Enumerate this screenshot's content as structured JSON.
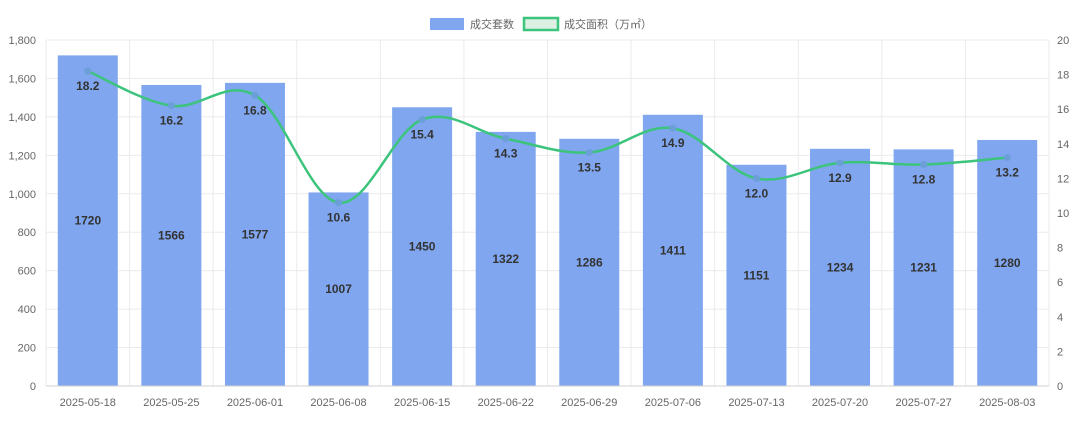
{
  "chart_data": {
    "type": "bar",
    "categories": [
      "2025-05-18",
      "2025-05-25",
      "2025-06-01",
      "2025-06-08",
      "2025-06-15",
      "2025-06-22",
      "2025-06-29",
      "2025-07-06",
      "2025-07-13",
      "2025-07-20",
      "2025-07-27",
      "2025-08-03"
    ],
    "series": [
      {
        "name": "成交套数",
        "type": "bar",
        "axis": "left",
        "color": "#7FA6EE",
        "values": [
          1720,
          1566,
          1577,
          1007,
          1450,
          1322,
          1286,
          1411,
          1151,
          1234,
          1231,
          1280
        ],
        "labels": [
          "1720",
          "1566",
          "1577",
          "1007",
          "1450",
          "1322",
          "1286",
          "1411",
          "1151",
          "1234",
          "1231",
          "1280"
        ]
      },
      {
        "name": "成交面积（万㎡）",
        "type": "line",
        "axis": "right",
        "color": "#3CC47C",
        "point_color": "#6A9FD8",
        "values": [
          18.2,
          16.2,
          16.8,
          10.6,
          15.4,
          14.3,
          13.5,
          14.9,
          12.0,
          12.9,
          12.8,
          13.2
        ],
        "labels": [
          "18.2",
          "16.2",
          "16.8",
          "10.6",
          "15.4",
          "14.3",
          "13.5",
          "14.9",
          "12.0",
          "12.9",
          "12.8",
          "13.2"
        ]
      }
    ],
    "y_left": {
      "min": 0,
      "max": 1800,
      "ticks": [
        0,
        200,
        400,
        600,
        800,
        1000,
        1200,
        1400,
        1600,
        1800
      ],
      "tick_labels": [
        "0",
        "200",
        "400",
        "600",
        "800",
        "1,000",
        "1,200",
        "1,400",
        "1,600",
        "1,800"
      ]
    },
    "y_right": {
      "min": 0,
      "max": 20,
      "ticks": [
        0,
        2,
        4,
        6,
        8,
        10,
        12,
        14,
        16,
        18,
        20
      ],
      "tick_labels": [
        "0",
        "2",
        "4",
        "6",
        "8",
        "10",
        "12",
        "14",
        "16",
        "18",
        "20"
      ]
    },
    "grid": true,
    "legend_position": "top-center"
  }
}
